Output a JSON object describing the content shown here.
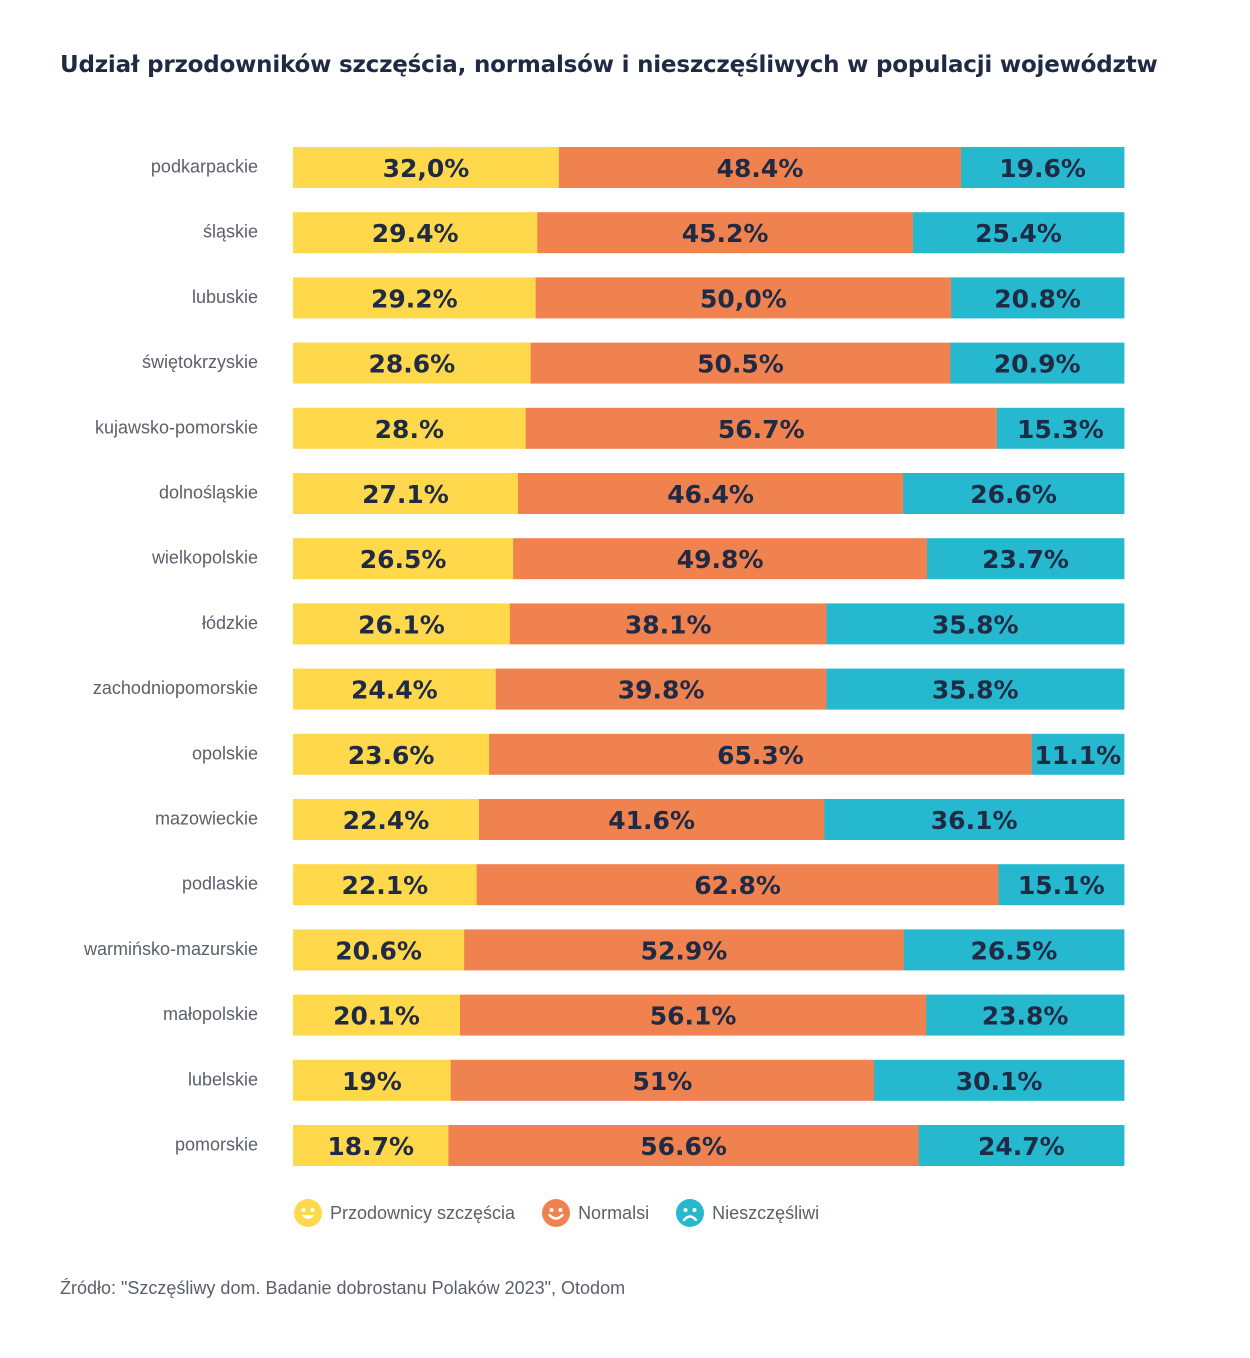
{
  "title": "Udział przodowników szczęścia, normalsów i nieszczęśliwych w populacji województw",
  "source": "Źródło: \"Szczęśliwy dom. Badanie dobrostanu Polaków 2023\", Otodom",
  "colors": {
    "happy": "#FFD84B",
    "normal": "#F0824F",
    "unhappy": "#26B8CF",
    "text": "#1f2a44"
  },
  "legend": [
    {
      "label": "Przodownicy szczęścia",
      "color": "#FFD84B",
      "icon": "smile-face-icon"
    },
    {
      "label": "Normalsi",
      "color": "#F0824F",
      "icon": "smile-face-icon"
    },
    {
      "label": "Nieszczęśliwi",
      "color": "#26B8CF",
      "icon": "sad-face-icon"
    }
  ],
  "chart_data": {
    "type": "bar",
    "stacked": true,
    "orientation": "horizontal",
    "normalized_100": true,
    "categories": [
      "podkarpackie",
      "śląskie",
      "lubuskie",
      "świętokrzyskie",
      "kujawsko-pomorskie",
      "dolnośląskie",
      "wielkopolskie",
      "łódzkie",
      "zachodniopomorskie",
      "opolskie",
      "mazowieckie",
      "podlaskie",
      "warmińsko-mazurskie",
      "małopolskie",
      "lubelskie",
      "pomorskie"
    ],
    "series": [
      {
        "name": "Przodownicy szczęścia",
        "values": [
          32.0,
          29.4,
          29.2,
          28.6,
          28.0,
          27.1,
          26.5,
          26.1,
          24.4,
          23.6,
          22.4,
          22.1,
          20.6,
          20.1,
          19.0,
          18.7
        ],
        "labels": [
          "32,0%",
          "29.4%",
          "29.2%",
          "28.6%",
          "28.%",
          "27.1%",
          "26.5%",
          "26.1%",
          "24.4%",
          "23.6%",
          "22.4%",
          "22.1%",
          "20.6%",
          "20.1%",
          "19%",
          "18.7%"
        ]
      },
      {
        "name": "Normalsi",
        "values": [
          48.4,
          45.2,
          50.0,
          50.5,
          56.7,
          46.4,
          49.8,
          38.1,
          39.8,
          65.3,
          41.6,
          62.8,
          52.9,
          56.1,
          51.0,
          56.6
        ],
        "labels": [
          "48.4%",
          "45.2%",
          "50,0%",
          "50.5%",
          "56.7%",
          "46.4%",
          "49.8%",
          "38.1%",
          "39.8%",
          "65.3%",
          "41.6%",
          "62.8%",
          "52.9%",
          "56.1%",
          "51%",
          "56.6%"
        ]
      },
      {
        "name": "Nieszczęśliwi",
        "values": [
          19.6,
          25.4,
          20.8,
          20.9,
          15.3,
          26.6,
          23.7,
          35.8,
          35.8,
          11.1,
          36.1,
          15.1,
          26.5,
          23.8,
          30.1,
          24.7
        ],
        "labels": [
          "19.6%",
          "25.4%",
          "20.8%",
          "20.9%",
          "15.3%",
          "26.6%",
          "23.7%",
          "35.8%",
          "35.8%",
          "11.1%",
          "36.1%",
          "15.1%",
          "26.5%",
          "23.8%",
          "30.1%",
          "24.7%"
        ]
      }
    ],
    "xlim": [
      0,
      100
    ],
    "grid": false,
    "legend_position": "bottom"
  }
}
